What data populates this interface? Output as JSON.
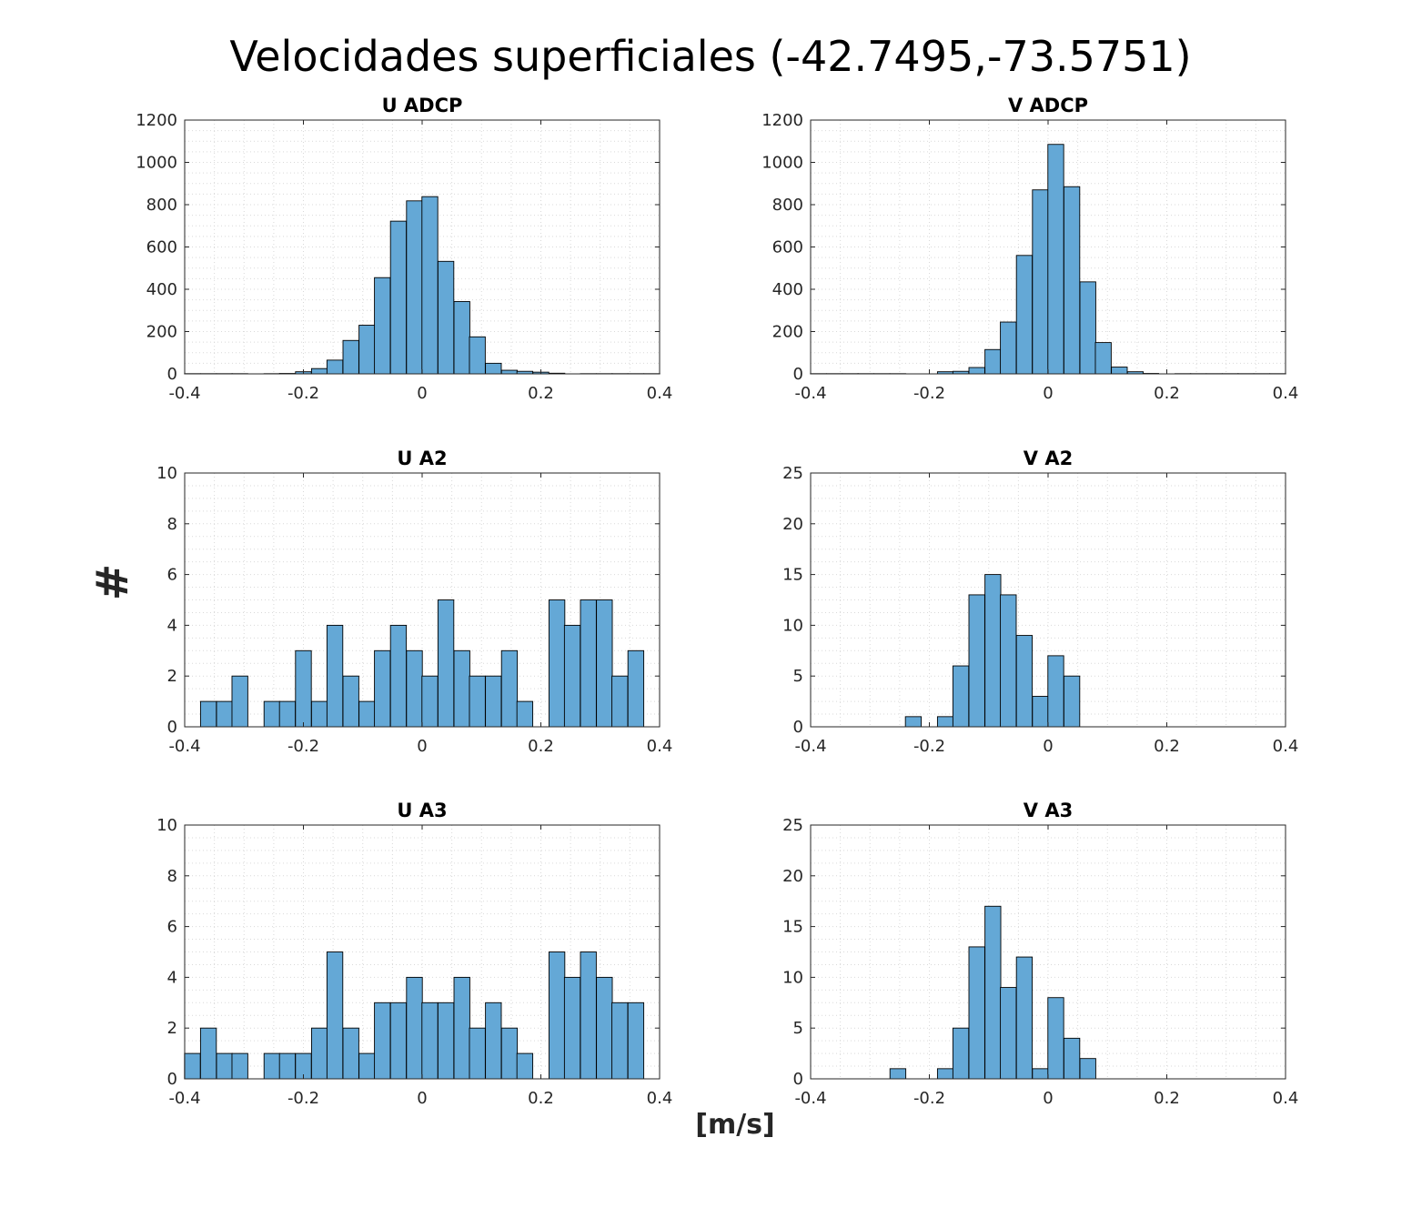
{
  "figure": {
    "title": "Velocidades superficiales (-42.7495,-73.5751)",
    "ylabel": "#",
    "xlabel": "[m/s]"
  },
  "style": {
    "bar_fill": "#64a8d6",
    "bar_edge": "#000000",
    "grid_color": "#d9d9d9",
    "axis_color": "#262626"
  },
  "chart_data": [
    {
      "type": "bar",
      "title": "U ADCP",
      "xlim": [
        -0.4,
        0.4
      ],
      "ylim": [
        0,
        1200
      ],
      "xticks": [
        -0.4,
        -0.2,
        0,
        0.2,
        0.4
      ],
      "xtick_labels": [
        "-0.4",
        "-0.2",
        "0",
        "0.2",
        "0.4"
      ],
      "yticks": [
        0,
        200,
        400,
        600,
        800,
        1000,
        1200
      ],
      "ytick_labels": [
        "0",
        "200",
        "400",
        "600",
        "800",
        "1000",
        "1200"
      ],
      "bin_width": 0.02667,
      "bins": [
        {
          "x": -0.387,
          "y": 1
        },
        {
          "x": -0.36,
          "y": 1
        },
        {
          "x": -0.333,
          "y": 1
        },
        {
          "x": -0.307,
          "y": 1
        },
        {
          "x": -0.28,
          "y": 0
        },
        {
          "x": -0.253,
          "y": 1
        },
        {
          "x": -0.227,
          "y": 2
        },
        {
          "x": -0.2,
          "y": 10
        },
        {
          "x": -0.173,
          "y": 25
        },
        {
          "x": -0.147,
          "y": 65
        },
        {
          "x": -0.12,
          "y": 158
        },
        {
          "x": -0.093,
          "y": 230
        },
        {
          "x": -0.067,
          "y": 455
        },
        {
          "x": -0.04,
          "y": 722
        },
        {
          "x": -0.013,
          "y": 818
        },
        {
          "x": 0.013,
          "y": 838
        },
        {
          "x": 0.04,
          "y": 532
        },
        {
          "x": 0.067,
          "y": 342
        },
        {
          "x": 0.093,
          "y": 175
        },
        {
          "x": 0.12,
          "y": 50
        },
        {
          "x": 0.147,
          "y": 17
        },
        {
          "x": 0.173,
          "y": 12
        },
        {
          "x": 0.2,
          "y": 8
        },
        {
          "x": 0.227,
          "y": 3
        },
        {
          "x": 0.253,
          "y": 0
        },
        {
          "x": 0.28,
          "y": 1
        },
        {
          "x": 0.307,
          "y": 1
        },
        {
          "x": 0.333,
          "y": 1
        },
        {
          "x": 0.36,
          "y": 1
        },
        {
          "x": 0.387,
          "y": 1
        }
      ]
    },
    {
      "type": "bar",
      "title": "V ADCP",
      "xlim": [
        -0.4,
        0.4
      ],
      "ylim": [
        0,
        1200
      ],
      "xticks": [
        -0.4,
        -0.2,
        0,
        0.2,
        0.4
      ],
      "xtick_labels": [
        "-0.4",
        "-0.2",
        "0",
        "0.2",
        "0.4"
      ],
      "yticks": [
        0,
        200,
        400,
        600,
        800,
        1000,
        1200
      ],
      "ytick_labels": [
        "0",
        "200",
        "400",
        "600",
        "800",
        "1000",
        "1200"
      ],
      "bin_width": 0.02667,
      "bins": [
        {
          "x": -0.387,
          "y": 1
        },
        {
          "x": -0.36,
          "y": 1
        },
        {
          "x": -0.333,
          "y": 1
        },
        {
          "x": -0.307,
          "y": 1
        },
        {
          "x": -0.28,
          "y": 1
        },
        {
          "x": -0.253,
          "y": 1
        },
        {
          "x": -0.227,
          "y": 0
        },
        {
          "x": -0.2,
          "y": 0
        },
        {
          "x": -0.173,
          "y": 10
        },
        {
          "x": -0.147,
          "y": 12
        },
        {
          "x": -0.12,
          "y": 30
        },
        {
          "x": -0.093,
          "y": 115
        },
        {
          "x": -0.067,
          "y": 245
        },
        {
          "x": -0.04,
          "y": 560
        },
        {
          "x": -0.013,
          "y": 870
        },
        {
          "x": 0.013,
          "y": 1085
        },
        {
          "x": 0.04,
          "y": 885
        },
        {
          "x": 0.067,
          "y": 435
        },
        {
          "x": 0.093,
          "y": 148
        },
        {
          "x": 0.12,
          "y": 32
        },
        {
          "x": 0.147,
          "y": 10
        },
        {
          "x": 0.173,
          "y": 2
        },
        {
          "x": 0.2,
          "y": 0
        },
        {
          "x": 0.227,
          "y": 1
        },
        {
          "x": 0.253,
          "y": 1
        },
        {
          "x": 0.28,
          "y": 1
        },
        {
          "x": 0.307,
          "y": 1
        },
        {
          "x": 0.333,
          "y": 1
        },
        {
          "x": 0.36,
          "y": 1
        },
        {
          "x": 0.387,
          "y": 1
        }
      ]
    },
    {
      "type": "bar",
      "title": "U A2",
      "xlim": [
        -0.4,
        0.4
      ],
      "ylim": [
        0,
        10
      ],
      "xticks": [
        -0.4,
        -0.2,
        0,
        0.2,
        0.4
      ],
      "xtick_labels": [
        "-0.4",
        "-0.2",
        "0",
        "0.2",
        "0.4"
      ],
      "yticks": [
        0,
        2,
        4,
        6,
        8,
        10
      ],
      "ytick_labels": [
        "0",
        "2",
        "4",
        "6",
        "8",
        "10"
      ],
      "bin_width": 0.02667,
      "bins": [
        {
          "x": -0.387,
          "y": 0
        },
        {
          "x": -0.36,
          "y": 1
        },
        {
          "x": -0.333,
          "y": 1
        },
        {
          "x": -0.307,
          "y": 2
        },
        {
          "x": -0.28,
          "y": 0
        },
        {
          "x": -0.253,
          "y": 1
        },
        {
          "x": -0.227,
          "y": 1
        },
        {
          "x": -0.2,
          "y": 3
        },
        {
          "x": -0.173,
          "y": 1
        },
        {
          "x": -0.147,
          "y": 4
        },
        {
          "x": -0.12,
          "y": 2
        },
        {
          "x": -0.093,
          "y": 1
        },
        {
          "x": -0.067,
          "y": 3
        },
        {
          "x": -0.04,
          "y": 4
        },
        {
          "x": -0.013,
          "y": 3
        },
        {
          "x": 0.013,
          "y": 2
        },
        {
          "x": 0.04,
          "y": 5
        },
        {
          "x": 0.067,
          "y": 3
        },
        {
          "x": 0.093,
          "y": 2
        },
        {
          "x": 0.12,
          "y": 2
        },
        {
          "x": 0.147,
          "y": 3
        },
        {
          "x": 0.173,
          "y": 1
        },
        {
          "x": 0.2,
          "y": 0
        },
        {
          "x": 0.227,
          "y": 5
        },
        {
          "x": 0.253,
          "y": 4
        },
        {
          "x": 0.28,
          "y": 5
        },
        {
          "x": 0.307,
          "y": 5
        },
        {
          "x": 0.333,
          "y": 2
        },
        {
          "x": 0.36,
          "y": 3
        },
        {
          "x": 0.387,
          "y": 0
        }
      ]
    },
    {
      "type": "bar",
      "title": "V A2",
      "xlim": [
        -0.4,
        0.4
      ],
      "ylim": [
        0,
        25
      ],
      "xticks": [
        -0.4,
        -0.2,
        0,
        0.2,
        0.4
      ],
      "xtick_labels": [
        "-0.4",
        "-0.2",
        "0",
        "0.2",
        "0.4"
      ],
      "yticks": [
        0,
        5,
        10,
        15,
        20,
        25
      ],
      "ytick_labels": [
        "0",
        "5",
        "10",
        "15",
        "20",
        "25"
      ],
      "bin_width": 0.02667,
      "bins": [
        {
          "x": -0.387,
          "y": 0
        },
        {
          "x": -0.36,
          "y": 0
        },
        {
          "x": -0.333,
          "y": 0
        },
        {
          "x": -0.307,
          "y": 0
        },
        {
          "x": -0.28,
          "y": 0
        },
        {
          "x": -0.253,
          "y": 0
        },
        {
          "x": -0.227,
          "y": 1
        },
        {
          "x": -0.2,
          "y": 0
        },
        {
          "x": -0.173,
          "y": 1
        },
        {
          "x": -0.147,
          "y": 6
        },
        {
          "x": -0.12,
          "y": 13
        },
        {
          "x": -0.093,
          "y": 15
        },
        {
          "x": -0.067,
          "y": 13
        },
        {
          "x": -0.04,
          "y": 9
        },
        {
          "x": -0.013,
          "y": 3
        },
        {
          "x": 0.013,
          "y": 7
        },
        {
          "x": 0.04,
          "y": 5
        },
        {
          "x": 0.067,
          "y": 0
        },
        {
          "x": 0.093,
          "y": 0
        },
        {
          "x": 0.12,
          "y": 0
        },
        {
          "x": 0.147,
          "y": 0
        },
        {
          "x": 0.173,
          "y": 0
        },
        {
          "x": 0.2,
          "y": 0
        },
        {
          "x": 0.227,
          "y": 0
        },
        {
          "x": 0.253,
          "y": 0
        },
        {
          "x": 0.28,
          "y": 0
        },
        {
          "x": 0.307,
          "y": 0
        },
        {
          "x": 0.333,
          "y": 0
        },
        {
          "x": 0.36,
          "y": 0
        },
        {
          "x": 0.387,
          "y": 0
        }
      ]
    },
    {
      "type": "bar",
      "title": "U A3",
      "xlim": [
        -0.4,
        0.4
      ],
      "ylim": [
        0,
        10
      ],
      "xticks": [
        -0.4,
        -0.2,
        0,
        0.2,
        0.4
      ],
      "xtick_labels": [
        "-0.4",
        "-0.2",
        "0",
        "0.2",
        "0.4"
      ],
      "yticks": [
        0,
        2,
        4,
        6,
        8,
        10
      ],
      "ytick_labels": [
        "0",
        "2",
        "4",
        "6",
        "8",
        "10"
      ],
      "bin_width": 0.02667,
      "bins": [
        {
          "x": -0.387,
          "y": 1
        },
        {
          "x": -0.36,
          "y": 2
        },
        {
          "x": -0.333,
          "y": 1
        },
        {
          "x": -0.307,
          "y": 1
        },
        {
          "x": -0.28,
          "y": 0
        },
        {
          "x": -0.253,
          "y": 1
        },
        {
          "x": -0.227,
          "y": 1
        },
        {
          "x": -0.2,
          "y": 1
        },
        {
          "x": -0.173,
          "y": 2
        },
        {
          "x": -0.147,
          "y": 5
        },
        {
          "x": -0.12,
          "y": 2
        },
        {
          "x": -0.093,
          "y": 1
        },
        {
          "x": -0.067,
          "y": 3
        },
        {
          "x": -0.04,
          "y": 3
        },
        {
          "x": -0.013,
          "y": 4
        },
        {
          "x": 0.013,
          "y": 3
        },
        {
          "x": 0.04,
          "y": 3
        },
        {
          "x": 0.067,
          "y": 4
        },
        {
          "x": 0.093,
          "y": 2
        },
        {
          "x": 0.12,
          "y": 3
        },
        {
          "x": 0.147,
          "y": 2
        },
        {
          "x": 0.173,
          "y": 1
        },
        {
          "x": 0.2,
          "y": 0
        },
        {
          "x": 0.227,
          "y": 5
        },
        {
          "x": 0.253,
          "y": 4
        },
        {
          "x": 0.28,
          "y": 5
        },
        {
          "x": 0.307,
          "y": 4
        },
        {
          "x": 0.333,
          "y": 3
        },
        {
          "x": 0.36,
          "y": 3
        },
        {
          "x": 0.387,
          "y": 0
        }
      ]
    },
    {
      "type": "bar",
      "title": "V A3",
      "xlim": [
        -0.4,
        0.4
      ],
      "ylim": [
        0,
        25
      ],
      "xticks": [
        -0.4,
        -0.2,
        0,
        0.2,
        0.4
      ],
      "xtick_labels": [
        "-0.4",
        "-0.2",
        "0",
        "0.2",
        "0.4"
      ],
      "yticks": [
        0,
        5,
        10,
        15,
        20,
        25
      ],
      "ytick_labels": [
        "0",
        "5",
        "10",
        "15",
        "20",
        "25"
      ],
      "bin_width": 0.02667,
      "bins": [
        {
          "x": -0.387,
          "y": 0
        },
        {
          "x": -0.36,
          "y": 0
        },
        {
          "x": -0.333,
          "y": 0
        },
        {
          "x": -0.307,
          "y": 0
        },
        {
          "x": -0.28,
          "y": 0
        },
        {
          "x": -0.253,
          "y": 1
        },
        {
          "x": -0.227,
          "y": 0
        },
        {
          "x": -0.2,
          "y": 0
        },
        {
          "x": -0.173,
          "y": 1
        },
        {
          "x": -0.147,
          "y": 5
        },
        {
          "x": -0.12,
          "y": 13
        },
        {
          "x": -0.093,
          "y": 17
        },
        {
          "x": -0.067,
          "y": 9
        },
        {
          "x": -0.04,
          "y": 12
        },
        {
          "x": -0.013,
          "y": 1
        },
        {
          "x": 0.013,
          "y": 8
        },
        {
          "x": 0.04,
          "y": 4
        },
        {
          "x": 0.067,
          "y": 2
        },
        {
          "x": 0.093,
          "y": 0
        },
        {
          "x": 0.12,
          "y": 0
        },
        {
          "x": 0.147,
          "y": 0
        },
        {
          "x": 0.173,
          "y": 0
        },
        {
          "x": 0.2,
          "y": 0
        },
        {
          "x": 0.227,
          "y": 0
        },
        {
          "x": 0.253,
          "y": 0
        },
        {
          "x": 0.28,
          "y": 0
        },
        {
          "x": 0.307,
          "y": 0
        },
        {
          "x": 0.333,
          "y": 0
        },
        {
          "x": 0.36,
          "y": 0
        },
        {
          "x": 0.387,
          "y": 0
        }
      ]
    }
  ]
}
